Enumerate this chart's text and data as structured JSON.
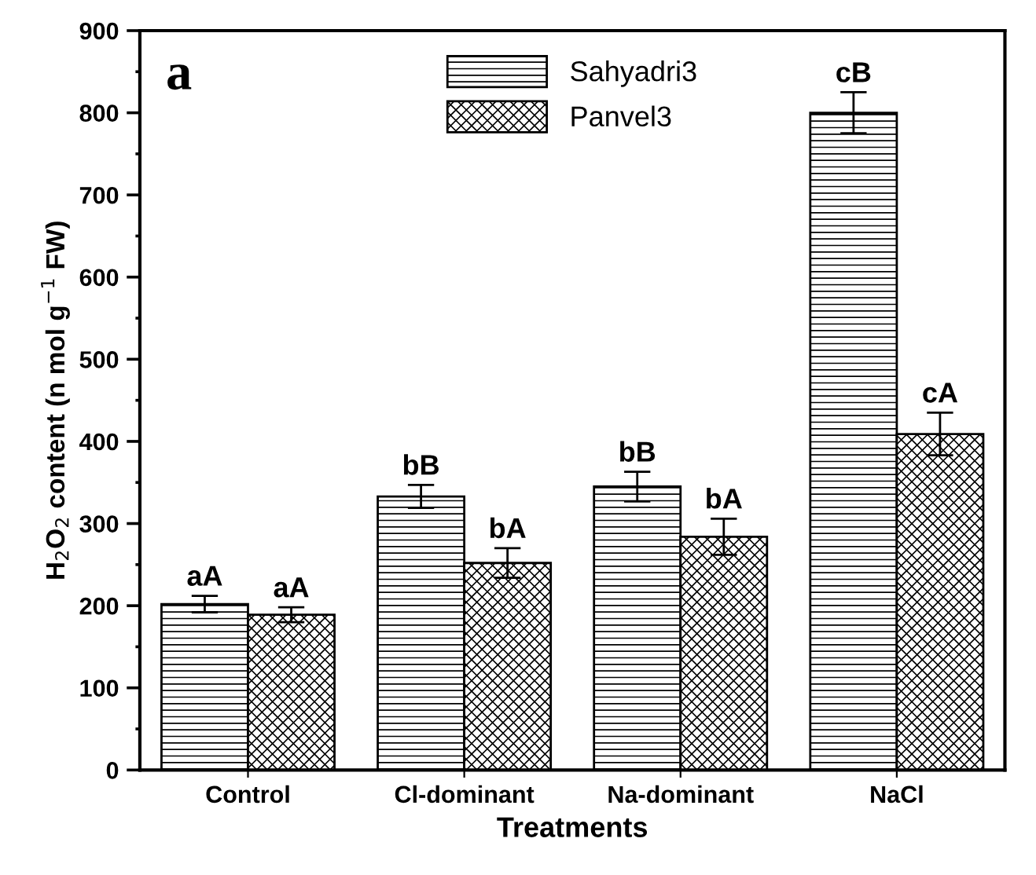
{
  "chart_data": {
    "type": "bar",
    "xlabel": "Treatments",
    "ylabel": "H$_{2}$O$_{2}$ content (n mol g$^{−1}$ FW)",
    "categories": [
      "Control",
      "Cl-dominant",
      "Na-dominant",
      "NaCl"
    ],
    "series": [
      {
        "name": "Sahyadri3",
        "color": "#000000",
        "values": [
          202,
          333,
          345,
          800
        ],
        "errors": [
          10,
          14,
          18,
          25
        ],
        "value_labels": [
          "aA",
          "bB",
          "bB",
          "cB"
        ]
      },
      {
        "name": "Panvel3",
        "color": "#000000",
        "values": [
          189,
          252,
          284,
          409
        ],
        "errors": [
          9,
          18,
          22,
          26
        ],
        "value_labels": [
          "aA",
          "bA",
          "bA",
          "cA"
        ]
      }
    ],
    "ylim": [
      0,
      900
    ],
    "yticks": [
      0,
      100,
      200,
      300,
      400,
      500,
      600,
      700,
      800,
      900
    ],
    "grid": false,
    "legend": "top",
    "annotations": [
      "a"
    ]
  }
}
